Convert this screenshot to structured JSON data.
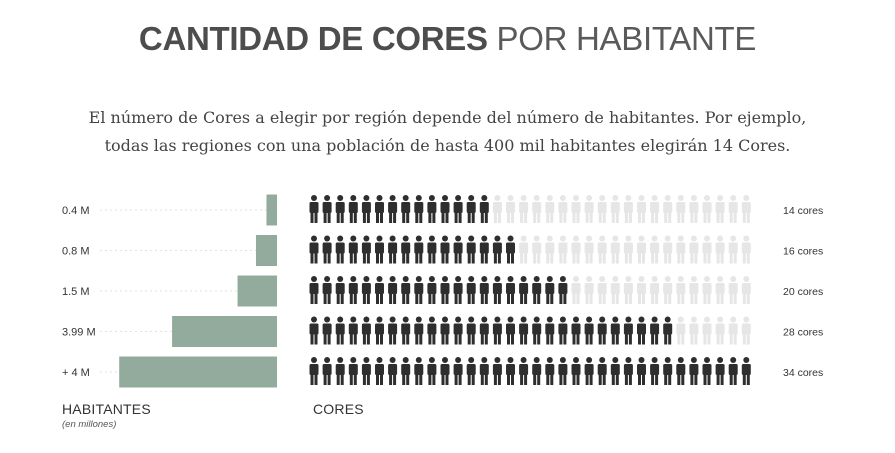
{
  "title": {
    "bold": "CANTIDAD DE CORES",
    "light": "POR HABITANTE"
  },
  "intro": {
    "line1": "El número de Cores a elegir por región depende del número de habitantes. Por ejemplo,",
    "line2": "todas las regiones con una población de hasta 400 mil habitantes elegirán 14 Cores."
  },
  "chart_data": {
    "type": "bar",
    "orientation": "horizontal",
    "categories": [
      "0.4 M",
      "0.8 M",
      "1.5 M",
      "3.99 M",
      "+ 4 M"
    ],
    "habitantes_millones": [
      0.4,
      0.8,
      1.5,
      3.99,
      6
    ],
    "cores": [
      14,
      16,
      20,
      28,
      34
    ],
    "cores_labels": [
      "14 cores",
      "16 cores",
      "20 cores",
      "28 cores",
      "34 cores"
    ],
    "max_icons": 34,
    "xlabel_left": "HABITANTES",
    "xlabel_left_sub": "(en millones)",
    "xlabel_right": "CORES",
    "colors": {
      "bar": "#93ab9c",
      "icon_active": "#2e2e2e",
      "icon_inactive": "#e6e6e6"
    }
  }
}
